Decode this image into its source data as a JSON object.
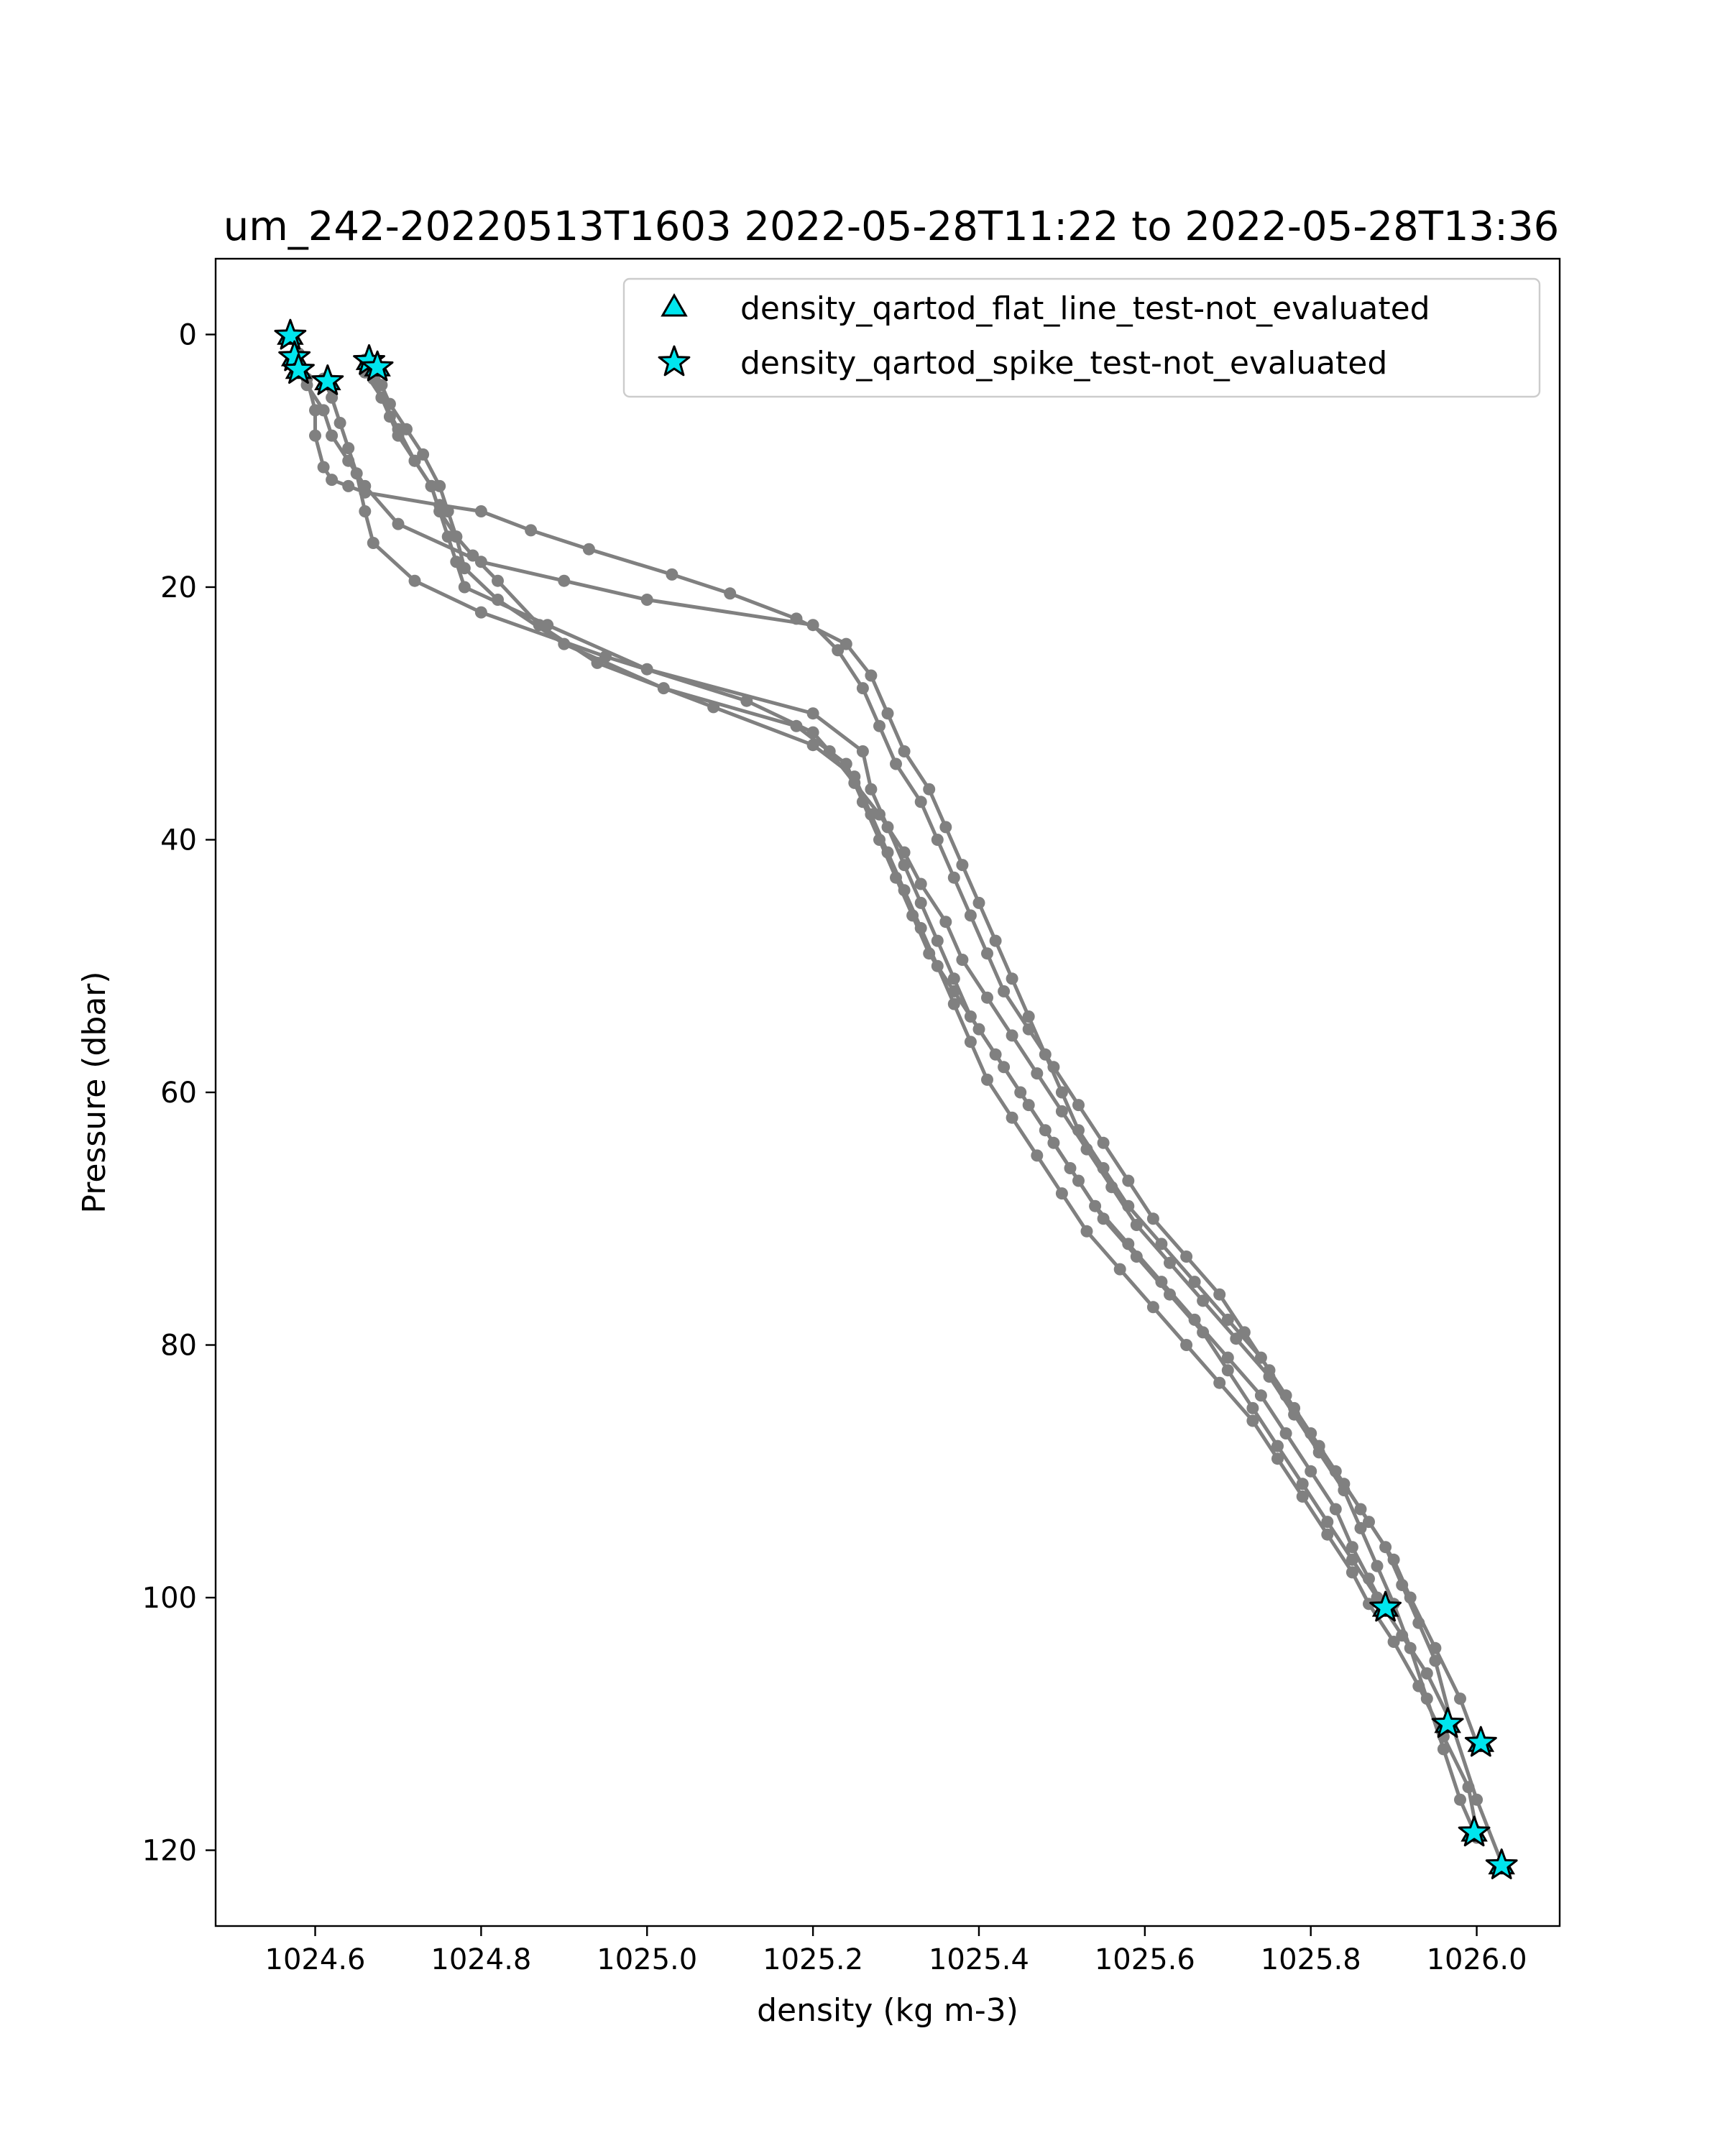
{
  "chart_data": {
    "type": "scatter",
    "title": "um_242-20220513T1603 2022-05-28T11:22 to 2022-05-28T13:36",
    "xlabel": "density (kg m-3)",
    "ylabel": "Pressure (dbar)",
    "xlim": [
      1024.48,
      1026.1
    ],
    "ylim": [
      126,
      -6
    ],
    "y_inverted": true,
    "xticks": [
      1024.6,
      1024.8,
      1025.0,
      1025.2,
      1025.4,
      1025.6,
      1025.8,
      1026.0
    ],
    "xtick_labels": [
      "1024.6",
      "1024.8",
      "1025.0",
      "1025.2",
      "1025.4",
      "1025.6",
      "1025.8",
      "1026.0"
    ],
    "yticks": [
      0,
      20,
      40,
      60,
      80,
      100,
      120
    ],
    "ytick_labels": [
      "0",
      "20",
      "40",
      "60",
      "80",
      "100",
      "120"
    ],
    "grid": false,
    "legend_position": "upper-right",
    "profile_color": "#808080",
    "marker_face": "#00e5ee",
    "marker_edge": "#000000",
    "legend": [
      {
        "name": "density_qartod_flat_line_test-not_evaluated",
        "marker": "triangle"
      },
      {
        "name": "density_qartod_spike_test-not_evaluated",
        "marker": "star"
      }
    ],
    "profiles": [
      {
        "x": [
          1024.57,
          1024.58,
          1024.59,
          1024.6,
          1024.6,
          1024.61,
          1024.62,
          1024.64,
          1024.66,
          1024.75,
          1024.8,
          1024.86,
          1024.93,
          1025.03,
          1025.1,
          1025.18,
          1025.24,
          1025.27,
          1025.29,
          1025.31,
          1025.34,
          1025.36,
          1025.38,
          1025.4,
          1025.42,
          1025.44,
          1025.46,
          1025.48,
          1025.5,
          1025.52,
          1025.55,
          1025.58,
          1025.62,
          1025.66,
          1025.7,
          1025.74,
          1025.77,
          1025.8,
          1025.83,
          1025.86,
          1025.89,
          1025.91,
          1025.93,
          1025.95,
          1025.97
        ],
        "y": [
          0,
          1.5,
          3.5,
          6,
          8,
          10.5,
          11.5,
          12,
          12.5,
          13.5,
          14,
          15.5,
          17,
          19,
          20.5,
          22.5,
          24.5,
          27,
          30,
          33,
          36,
          39,
          42,
          45,
          48,
          51,
          54,
          57,
          60,
          63,
          66,
          69,
          72,
          75,
          78,
          81,
          84,
          87,
          90,
          93,
          96,
          99,
          102,
          105,
          110
        ]
      },
      {
        "x": [
          1024.58,
          1024.59,
          1024.61,
          1024.62,
          1024.64,
          1024.66,
          1024.7,
          1024.8,
          1024.9,
          1025.0,
          1025.2,
          1025.23,
          1025.26,
          1025.28,
          1025.3,
          1025.33,
          1025.35,
          1025.37,
          1025.39,
          1025.41,
          1025.43,
          1025.46,
          1025.49,
          1025.52,
          1025.55,
          1025.58,
          1025.61,
          1025.65,
          1025.69,
          1025.72,
          1025.75,
          1025.78,
          1025.81,
          1025.84,
          1025.87,
          1025.9,
          1025.92,
          1025.95,
          1025.98,
          1026.0
        ],
        "y": [
          2.5,
          4,
          6,
          8,
          10,
          12,
          15,
          18,
          19.5,
          21,
          23,
          25,
          28,
          31,
          34,
          37,
          40,
          43,
          46,
          49,
          52,
          55,
          58,
          61,
          64,
          67,
          70,
          73,
          76,
          79,
          82,
          85,
          88,
          91,
          94,
          97,
          100,
          104,
          108,
          111.5
        ]
      },
      {
        "x": [
          1024.61,
          1024.62,
          1024.63,
          1024.64,
          1024.65,
          1024.66,
          1024.67,
          1024.72,
          1024.8,
          1024.95,
          1025.12,
          1025.2,
          1025.22,
          1025.25,
          1025.28,
          1025.31,
          1025.33,
          1025.36,
          1025.38,
          1025.41,
          1025.44,
          1025.47,
          1025.5,
          1025.53,
          1025.56,
          1025.59,
          1025.63,
          1025.67,
          1025.71,
          1025.75,
          1025.78,
          1025.81,
          1025.84,
          1025.86,
          1025.88,
          1025.9,
          1025.92,
          1025.94,
          1025.96,
          1025.98,
          1026.0
        ],
        "y": [
          3.5,
          5,
          7,
          9,
          11,
          14,
          16.5,
          19.5,
          22,
          25.5,
          29,
          31.5,
          33,
          35.5,
          38,
          41,
          43.5,
          46.5,
          49.5,
          52.5,
          55.5,
          58.5,
          61.5,
          64.5,
          67.5,
          70.5,
          73.5,
          76.5,
          79.5,
          82.5,
          85.5,
          88.5,
          91.5,
          94.5,
          97.5,
          100.5,
          104,
          108,
          112,
          116,
          119
        ]
      },
      {
        "x": [
          1024.66,
          1024.67,
          1024.68,
          1024.69,
          1024.7,
          1024.72,
          1024.74,
          1024.75,
          1024.76,
          1024.77,
          1024.78,
          1024.88,
          1025.0,
          1025.2,
          1025.26,
          1025.27,
          1025.29,
          1025.31,
          1025.33,
          1025.35,
          1025.37,
          1025.39,
          1025.42,
          1025.45,
          1025.48,
          1025.51,
          1025.54,
          1025.58,
          1025.62,
          1025.66,
          1025.7,
          1025.74,
          1025.77,
          1025.8,
          1025.83,
          1025.85,
          1025.87,
          1025.89
        ],
        "y": [
          2,
          3.5,
          5,
          6.5,
          8,
          10,
          12,
          14,
          16,
          18,
          20,
          23,
          26.5,
          30,
          33,
          36,
          39,
          42,
          45,
          48,
          51,
          54,
          57,
          60,
          63,
          66,
          69,
          72,
          75,
          78,
          81,
          84,
          87,
          90,
          93,
          96,
          98.5,
          101
        ]
      },
      {
        "x": [
          1024.67,
          1024.68,
          1024.69,
          1024.71,
          1024.73,
          1024.75,
          1024.76,
          1024.77,
          1024.78,
          1024.82,
          1024.9,
          1025.02,
          1025.18,
          1025.24,
          1025.26,
          1025.28,
          1025.3,
          1025.32,
          1025.34,
          1025.37,
          1025.4,
          1025.43,
          1025.46,
          1025.49,
          1025.52,
          1025.55,
          1025.59,
          1025.63,
          1025.67,
          1025.7,
          1025.73,
          1025.76,
          1025.79,
          1025.82,
          1025.85,
          1025.88,
          1025.91,
          1025.94,
          1025.97,
          1026.0,
          1026.03
        ],
        "y": [
          2.5,
          4,
          5.5,
          7.5,
          9.5,
          12,
          14,
          16,
          18.5,
          21,
          24.5,
          28,
          31,
          34,
          37,
          40,
          43,
          46,
          49,
          52,
          55,
          58,
          61,
          64,
          67,
          70,
          73,
          76,
          79,
          82,
          85,
          88,
          91,
          94,
          97,
          100,
          103,
          106,
          110,
          116,
          121
        ]
      },
      {
        "x": [
          1024.66,
          1024.68,
          1024.7,
          1024.72,
          1024.74,
          1024.75,
          1024.77,
          1024.79,
          1024.82,
          1024.87,
          1024.94,
          1025.08,
          1025.2,
          1025.25,
          1025.27,
          1025.29,
          1025.31,
          1025.33,
          1025.35,
          1025.37,
          1025.39,
          1025.41,
          1025.44,
          1025.47,
          1025.5,
          1025.53,
          1025.57,
          1025.61,
          1025.65,
          1025.69,
          1025.73,
          1025.76,
          1025.79,
          1025.82,
          1025.85,
          1025.87,
          1025.9,
          1025.93,
          1025.96,
          1025.99,
          1026.0
        ],
        "y": [
          3,
          5,
          7.5,
          10,
          12,
          14,
          16,
          17.5,
          19.5,
          23,
          26,
          29.5,
          32.5,
          35,
          38,
          41,
          44,
          47,
          50,
          53,
          56,
          59,
          62,
          65,
          68,
          71,
          74,
          77,
          80,
          83,
          86,
          89,
          92,
          95,
          98,
          100.5,
          103.5,
          107,
          111,
          115,
          118.5
        ]
      }
    ],
    "flat_line_points": [
      {
        "x": 1024.57,
        "y": 0.1
      },
      {
        "x": 1024.575,
        "y": 1.8
      },
      {
        "x": 1024.58,
        "y": 2.8
      },
      {
        "x": 1024.615,
        "y": 3.7
      },
      {
        "x": 1024.665,
        "y": 2.1
      },
      {
        "x": 1024.675,
        "y": 2.6
      },
      {
        "x": 1025.89,
        "y": 100.8
      },
      {
        "x": 1025.965,
        "y": 110.0
      },
      {
        "x": 1026.005,
        "y": 111.5
      },
      {
        "x": 1025.997,
        "y": 118.6
      },
      {
        "x": 1026.03,
        "y": 121.2
      }
    ],
    "spike_points": [
      {
        "x": 1024.57,
        "y": 0.1
      },
      {
        "x": 1024.575,
        "y": 1.8
      },
      {
        "x": 1024.58,
        "y": 2.8
      },
      {
        "x": 1024.615,
        "y": 3.7
      },
      {
        "x": 1024.665,
        "y": 2.1
      },
      {
        "x": 1024.675,
        "y": 2.6
      },
      {
        "x": 1025.89,
        "y": 100.8
      },
      {
        "x": 1025.965,
        "y": 110.0
      },
      {
        "x": 1026.005,
        "y": 111.5
      },
      {
        "x": 1025.997,
        "y": 118.6
      },
      {
        "x": 1026.03,
        "y": 121.2
      }
    ]
  }
}
